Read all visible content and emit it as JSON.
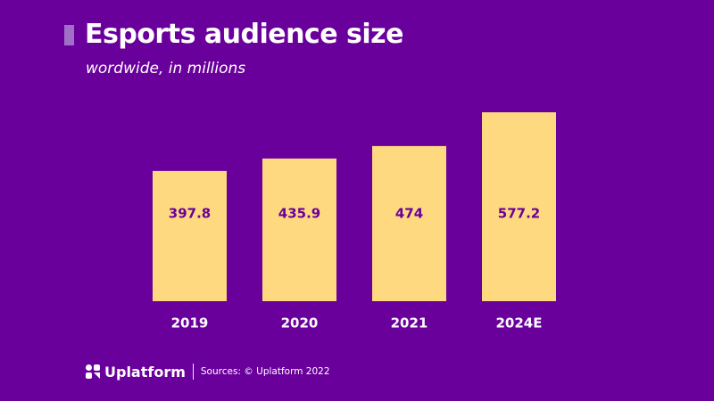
{
  "header": {
    "title": "Esports audience size",
    "subtitle": "wordwide, in millions"
  },
  "colors": {
    "background": "#6a009c",
    "bar": "#ffd97f",
    "bar_label": "#6a009c",
    "accent": "#a070c6",
    "text": "#ffffff"
  },
  "chart_data": {
    "type": "bar",
    "title": "Esports audience size",
    "subtitle": "wordwide, in millions",
    "categories": [
      "2019",
      "2020",
      "2021",
      "2024E"
    ],
    "values": [
      397.8,
      435.9,
      474,
      577.2
    ],
    "value_labels": [
      "397.8",
      "435.9",
      "474",
      "577.2"
    ],
    "xlabel": "",
    "ylabel": "",
    "ylim": [
      0,
      577.2
    ],
    "grid": false,
    "legend": "none",
    "data_labels": "inside-center"
  },
  "footer": {
    "logo_icon": "uplatform-logo-icon",
    "logo_text": "Uplatform",
    "source": "Sources: © Uplatform 2022"
  }
}
